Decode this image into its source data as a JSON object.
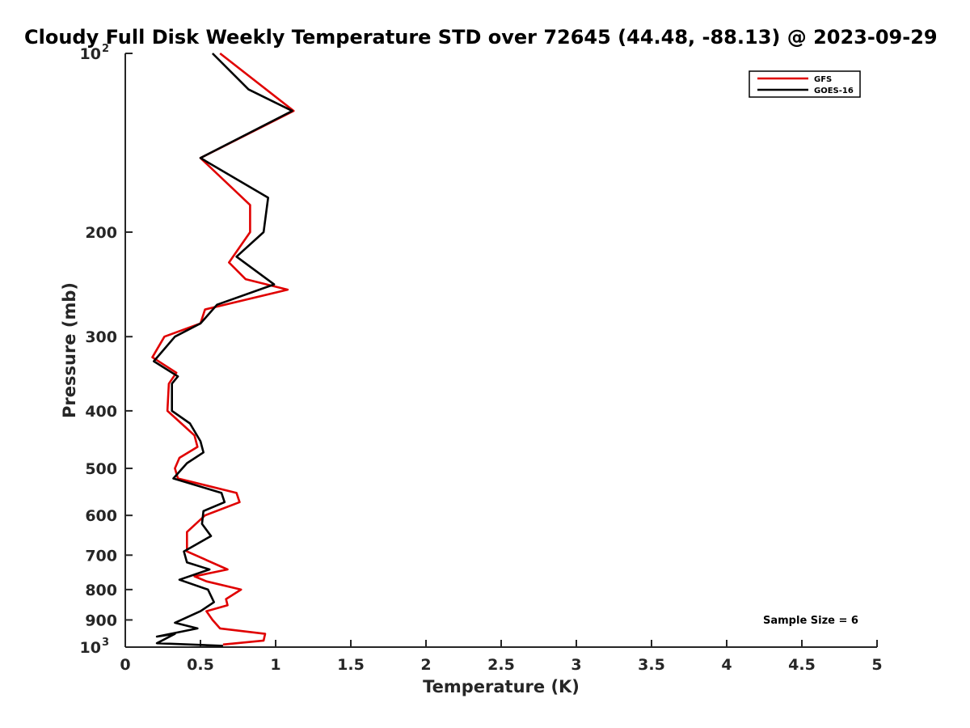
{
  "chart_data": {
    "type": "line",
    "title": "Cloudy Full Disk Weekly Temperature STD over 72645 (44.48, -88.13) @ 2023-09-29",
    "xlabel": "Temperature (K)",
    "ylabel": "Pressure (mb)",
    "xlim": [
      0,
      5
    ],
    "ylim": [
      100,
      1000
    ],
    "y_scale": "log",
    "y_reversed": true,
    "grid": false,
    "legend_position": "top-right",
    "x_ticks": [
      0,
      0.5,
      1,
      1.5,
      2,
      2.5,
      3,
      3.5,
      4,
      4.5,
      5
    ],
    "x_tick_labels": [
      "0",
      "0.5",
      "1",
      "1.5",
      "2",
      "2.5",
      "3",
      "3.5",
      "4",
      "4.5",
      "5"
    ],
    "y_ticks": [
      {
        "value": 100,
        "base": "10",
        "exp": "2"
      },
      {
        "value": 200,
        "label": "200"
      },
      {
        "value": 300,
        "label": "300"
      },
      {
        "value": 400,
        "label": "400"
      },
      {
        "value": 500,
        "label": "500"
      },
      {
        "value": 600,
        "label": "600"
      },
      {
        "value": 700,
        "label": "700"
      },
      {
        "value": 800,
        "label": "800"
      },
      {
        "value": 900,
        "label": "900"
      },
      {
        "value": 1000,
        "base": "10",
        "exp": "3"
      }
    ],
    "series": [
      {
        "name": "GFS",
        "color": "#e00000",
        "points": [
          [
            0.63,
            100
          ],
          [
            1.12,
            125
          ],
          [
            0.5,
            150
          ],
          [
            0.83,
            180
          ],
          [
            0.83,
            200
          ],
          [
            0.69,
            225
          ],
          [
            0.8,
            240
          ],
          [
            1.08,
            250
          ],
          [
            0.53,
            270
          ],
          [
            0.5,
            285
          ],
          [
            0.26,
            300
          ],
          [
            0.18,
            325
          ],
          [
            0.34,
            345
          ],
          [
            0.29,
            360
          ],
          [
            0.28,
            400
          ],
          [
            0.35,
            415
          ],
          [
            0.46,
            440
          ],
          [
            0.48,
            460
          ],
          [
            0.36,
            480
          ],
          [
            0.33,
            500
          ],
          [
            0.35,
            520
          ],
          [
            0.74,
            550
          ],
          [
            0.76,
            570
          ],
          [
            0.53,
            600
          ],
          [
            0.41,
            640
          ],
          [
            0.41,
            690
          ],
          [
            0.68,
            740
          ],
          [
            0.46,
            760
          ],
          [
            0.54,
            775
          ],
          [
            0.77,
            800
          ],
          [
            0.67,
            830
          ],
          [
            0.68,
            850
          ],
          [
            0.54,
            870
          ],
          [
            0.58,
            900
          ],
          [
            0.63,
            930
          ],
          [
            0.93,
            950
          ],
          [
            0.92,
            975
          ],
          [
            0.65,
            990
          ]
        ]
      },
      {
        "name": "GOES-16",
        "color": "#000000",
        "points": [
          [
            0.58,
            100
          ],
          [
            0.82,
            115
          ],
          [
            1.11,
            125
          ],
          [
            0.5,
            150
          ],
          [
            0.95,
            175
          ],
          [
            0.92,
            200
          ],
          [
            0.74,
            220
          ],
          [
            0.99,
            245
          ],
          [
            0.61,
            265
          ],
          [
            0.5,
            285
          ],
          [
            0.33,
            300
          ],
          [
            0.19,
            330
          ],
          [
            0.35,
            350
          ],
          [
            0.31,
            360
          ],
          [
            0.31,
            400
          ],
          [
            0.43,
            420
          ],
          [
            0.5,
            450
          ],
          [
            0.52,
            470
          ],
          [
            0.41,
            490
          ],
          [
            0.32,
            520
          ],
          [
            0.64,
            550
          ],
          [
            0.66,
            570
          ],
          [
            0.52,
            590
          ],
          [
            0.51,
            620
          ],
          [
            0.57,
            650
          ],
          [
            0.39,
            690
          ],
          [
            0.41,
            720
          ],
          [
            0.56,
            740
          ],
          [
            0.36,
            770
          ],
          [
            0.55,
            800
          ],
          [
            0.59,
            840
          ],
          [
            0.5,
            870
          ],
          [
            0.33,
            910
          ],
          [
            0.48,
            930
          ],
          [
            0.21,
            960
          ],
          [
            0.33,
            950
          ],
          [
            0.21,
            985
          ],
          [
            0.65,
            995
          ]
        ]
      }
    ],
    "annotations": [
      "Sample Size = 6"
    ]
  }
}
